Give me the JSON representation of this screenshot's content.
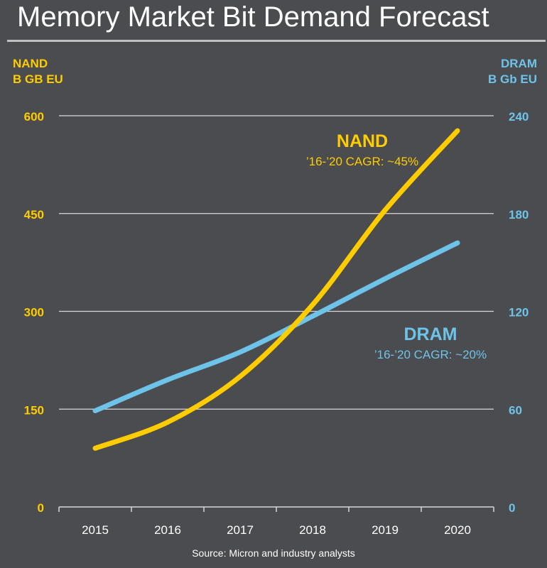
{
  "chart_data": {
    "type": "line",
    "title": "Memory Market Bit Demand Forecast",
    "x": [
      "2015",
      "2016",
      "2017",
      "2018",
      "2019",
      "2020"
    ],
    "left_axis": {
      "label_line1": "NAND",
      "label_line2": "B GB EU",
      "range": [
        0,
        600
      ],
      "ticks": [
        0,
        150,
        300,
        450,
        600
      ],
      "color": "#ffcc00"
    },
    "right_axis": {
      "label_line1": "DRAM",
      "label_line2": "B Gb EU",
      "range": [
        0,
        240
      ],
      "ticks": [
        0,
        60,
        120,
        180,
        240
      ],
      "color": "#6ec3e8"
    },
    "series": [
      {
        "name": "NAND",
        "axis": "left",
        "color": "#ffcc00",
        "annotation": "’16-’20 CAGR: ~45%",
        "values": [
          90,
          130,
          200,
          310,
          455,
          577
        ]
      },
      {
        "name": "DRAM",
        "axis": "right",
        "color": "#6ec3e8",
        "annotation": "’16-’20 CAGR: ~20%",
        "values": [
          59,
          78,
          95,
          117,
          140,
          162
        ]
      }
    ],
    "grid": true,
    "source": "Source: Micron and industry analysts"
  }
}
